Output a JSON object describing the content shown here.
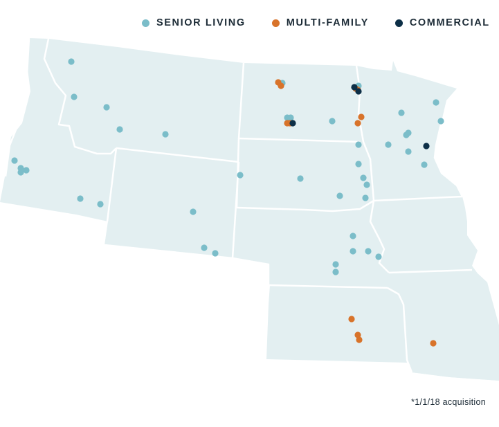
{
  "legend": [
    {
      "key": "senior_living",
      "label": "SENIOR LIVING",
      "color": "#7bbdc9"
    },
    {
      "key": "multi_family",
      "label": "MULTI-FAMILY",
      "color": "#d8732a"
    },
    {
      "key": "commercial",
      "label": "COMMERCIAL",
      "color": "#0d2f47"
    }
  ],
  "colors": {
    "land": "#e3eff1",
    "border": "#ffffff"
  },
  "footnote": "*1/1/18 acquisition"
}
